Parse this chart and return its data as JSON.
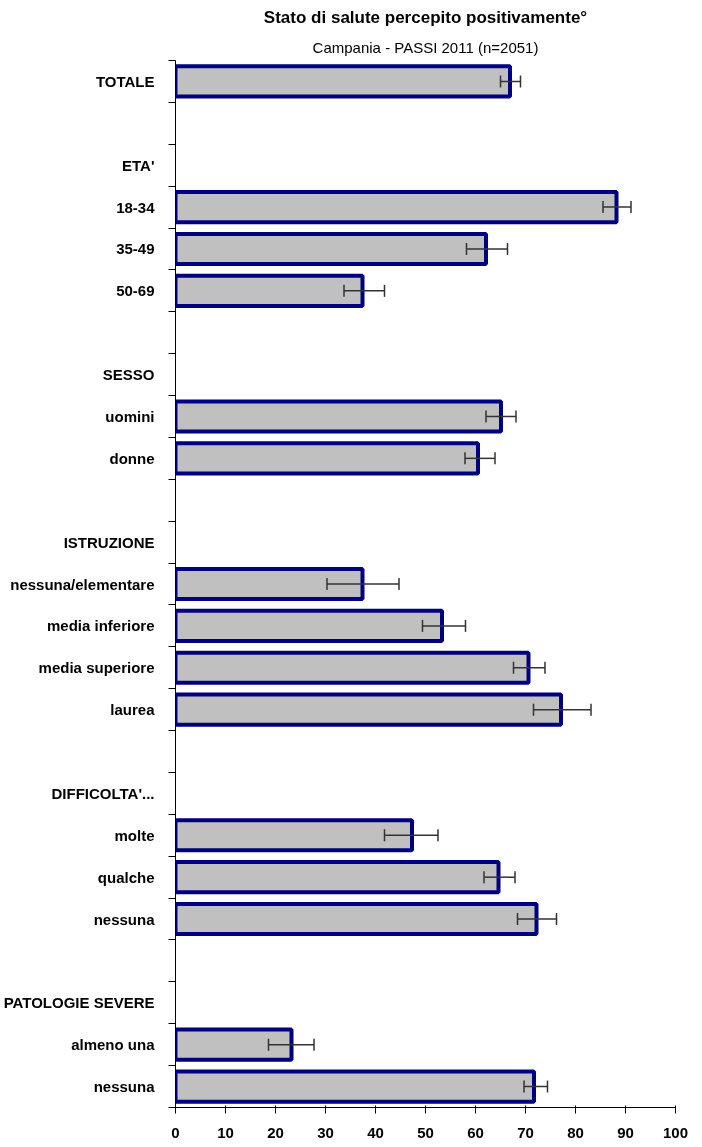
{
  "chart_data": {
    "type": "bar",
    "orientation": "horizontal",
    "title": "Stato di salute percepito positivamente°",
    "subtitle": "Campania - PASSI 2011 (n=2051)",
    "categories": [
      "TOTALE",
      null,
      "ETA'",
      "18-34",
      "35-49",
      "50-69",
      null,
      "SESSO",
      "uomini",
      "donne",
      null,
      "ISTRUZIONE",
      "nessuna/elementare",
      "media inferiore",
      "media superiore",
      "laurea",
      null,
      "DIFFICOLTA'...",
      "molte",
      "qualche",
      "nessuna",
      null,
      "PATOLOGIE SEVERE",
      "almeno una",
      "nessuna"
    ],
    "values": [
      66.9,
      null,
      null,
      88.2,
      62.1,
      37.4,
      null,
      null,
      65.1,
      60.5,
      null,
      null,
      37.4,
      53.3,
      70.6,
      77.1,
      null,
      null,
      47.3,
      64.6,
      72.2,
      null,
      null,
      23.2,
      71.7
    ],
    "errors": [
      [
        65.0,
        69.0
      ],
      null,
      null,
      [
        85.5,
        91.1
      ],
      [
        58.2,
        66.4
      ],
      [
        33.7,
        41.8
      ],
      null,
      null,
      [
        62.1,
        68.1
      ],
      [
        57.9,
        63.9
      ],
      null,
      null,
      [
        30.3,
        44.7
      ],
      [
        49.4,
        58.0
      ],
      [
        67.6,
        73.9
      ],
      [
        71.6,
        83.1
      ],
      null,
      null,
      [
        41.8,
        52.5
      ],
      [
        61.7,
        67.9
      ],
      [
        68.4,
        76.2
      ],
      null,
      null,
      [
        18.6,
        27.7
      ],
      [
        69.7,
        74.4
      ]
    ],
    "color": "#c0c0c0",
    "xlim": [
      0,
      100
    ],
    "xticks": [
      0,
      10,
      20,
      30,
      40,
      50,
      60,
      70,
      80,
      90,
      100
    ],
    "grid": false
  }
}
